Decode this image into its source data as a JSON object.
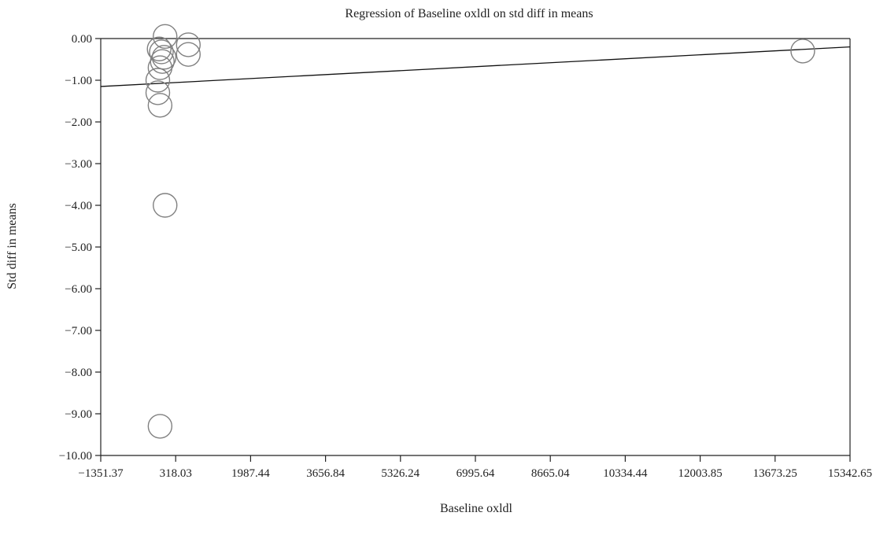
{
  "chart_data": {
    "type": "scatter",
    "title": "Regression of Baseline oxldl on std diff in means",
    "xlabel": "Baseline oxldl",
    "ylabel": "Std diff in means",
    "xlim": [
      -1351.37,
      15342.65
    ],
    "ylim": [
      -10.0,
      0.0
    ],
    "x_ticks": [
      -1351.37,
      318.03,
      1987.44,
      3656.84,
      5326.24,
      6995.64,
      8665.04,
      10334.44,
      12003.85,
      13673.25,
      15342.65
    ],
    "x_tick_labels": [
      "−1351.37",
      "318.03",
      "1987.44",
      "3656.84",
      "5326.24",
      "6995.64",
      "8665.04",
      "10334.44",
      "12003.85",
      "13673.25",
      "15342.65"
    ],
    "y_ticks": [
      0,
      -1,
      -2,
      -3,
      -4,
      -5,
      -6,
      -7,
      -8,
      -9,
      -10
    ],
    "y_tick_labels": [
      "0.00",
      "−1.00",
      "−2.00",
      "−3.00",
      "−4.00",
      "−5.00",
      "−6.00",
      "−7.00",
      "−8.00",
      "−9.00",
      "−10.00"
    ],
    "points": [
      {
        "x": 82,
        "y": 0.05
      },
      {
        "x": 600,
        "y": -0.15
      },
      {
        "x": -50,
        "y": -0.25
      },
      {
        "x": 0,
        "y": -0.32
      },
      {
        "x": 600,
        "y": -0.38
      },
      {
        "x": 60,
        "y": -0.45
      },
      {
        "x": 20,
        "y": -0.55
      },
      {
        "x": -30,
        "y": -0.7
      },
      {
        "x": -80,
        "y": -1.0
      },
      {
        "x": -80,
        "y": -1.3
      },
      {
        "x": -30,
        "y": -1.6
      },
      {
        "x": 82,
        "y": -4.0
      },
      {
        "x": -30,
        "y": -9.3
      },
      {
        "x": 14290,
        "y": -0.3
      }
    ],
    "regression_line": {
      "x": [
        -1351.37,
        15342.65
      ],
      "y": [
        -1.15,
        -0.2
      ]
    },
    "grid": false,
    "marker": "hollow-circle",
    "colors": {
      "marker": "#808080",
      "line": "#111111",
      "axis": "#222222"
    }
  }
}
